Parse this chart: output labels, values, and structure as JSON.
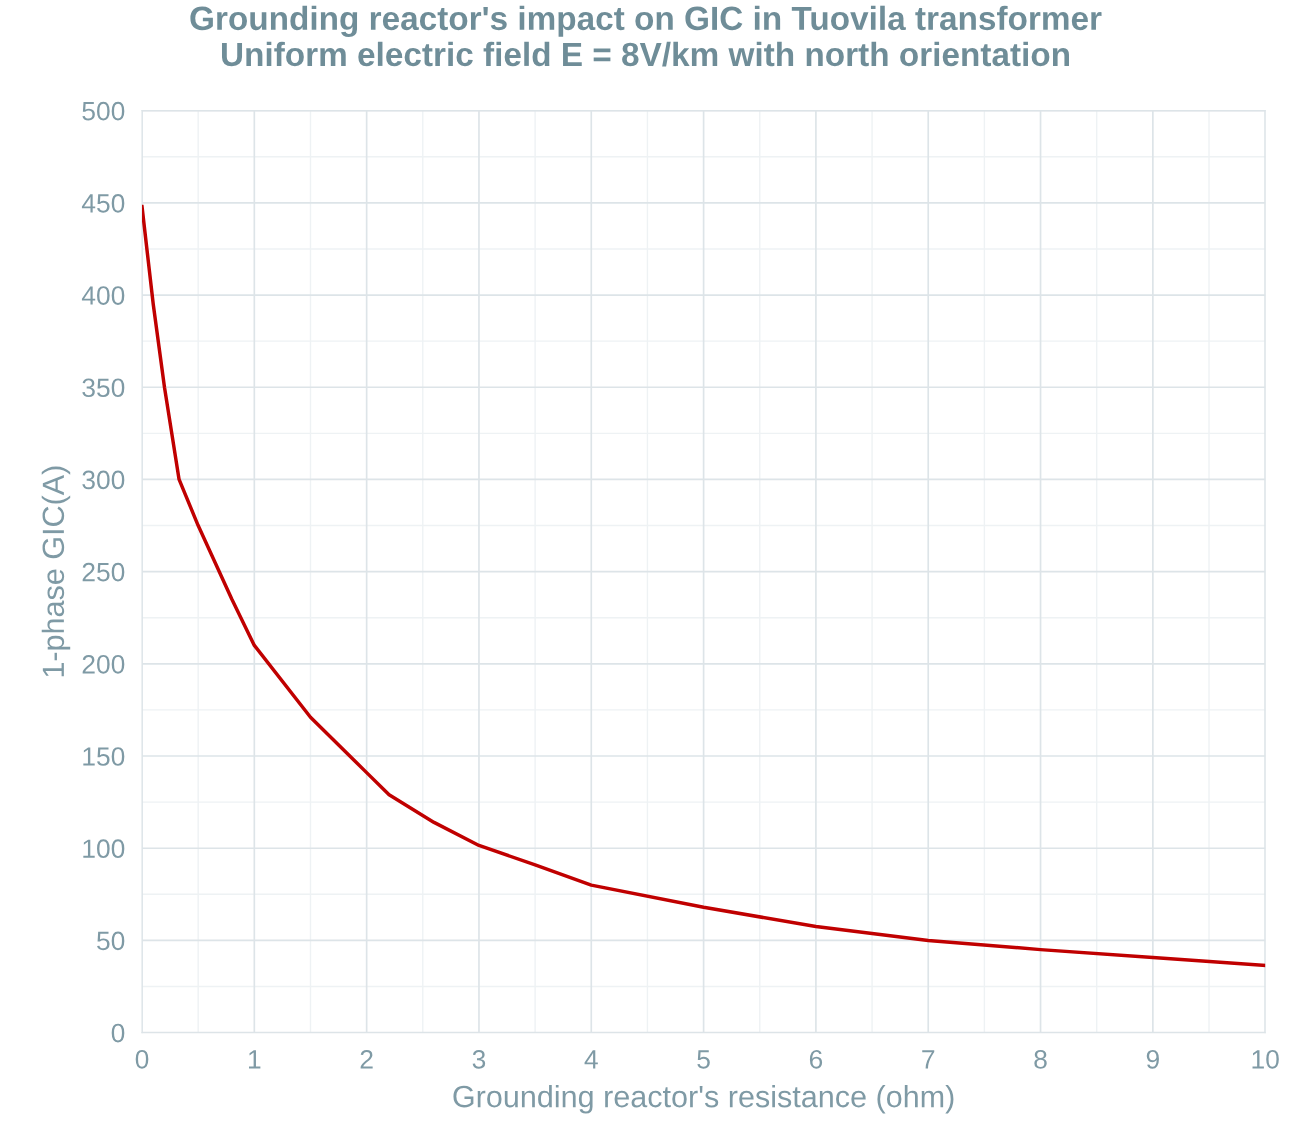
{
  "chart_data": {
    "type": "line",
    "title": "Grounding reactor's impact on GIC in Tuovila transformer\nUniform electric field E = 8V/km with north orientation",
    "xlabel": "Grounding reactor's resistance (ohm)",
    "ylabel": "1-phase GIC(A)",
    "x": [
      0,
      0.1,
      0.2,
      0.33,
      0.5,
      0.8,
      1,
      1.5,
      2,
      2.2,
      2.6,
      3,
      3.5,
      4,
      5,
      6,
      7,
      8,
      9,
      10
    ],
    "series": [
      {
        "color": "#c00000",
        "values": [
          448,
          395,
          350,
          300,
          275,
          235,
          210,
          171,
          141,
          129,
          114,
          101.5,
          91,
          80,
          68,
          57.5,
          50,
          45,
          40.7,
          36.4
        ]
      }
    ],
    "xlim": [
      0,
      10
    ],
    "xticks": [
      0,
      1,
      2,
      3,
      4,
      5,
      6,
      7,
      8,
      9,
      10
    ],
    "ylim": [
      0,
      500
    ],
    "yticks": [
      0,
      50,
      100,
      150,
      200,
      250,
      300,
      350,
      400,
      450,
      500
    ],
    "grid": true,
    "legend": false,
    "marker": "none",
    "line_style": "solid"
  }
}
